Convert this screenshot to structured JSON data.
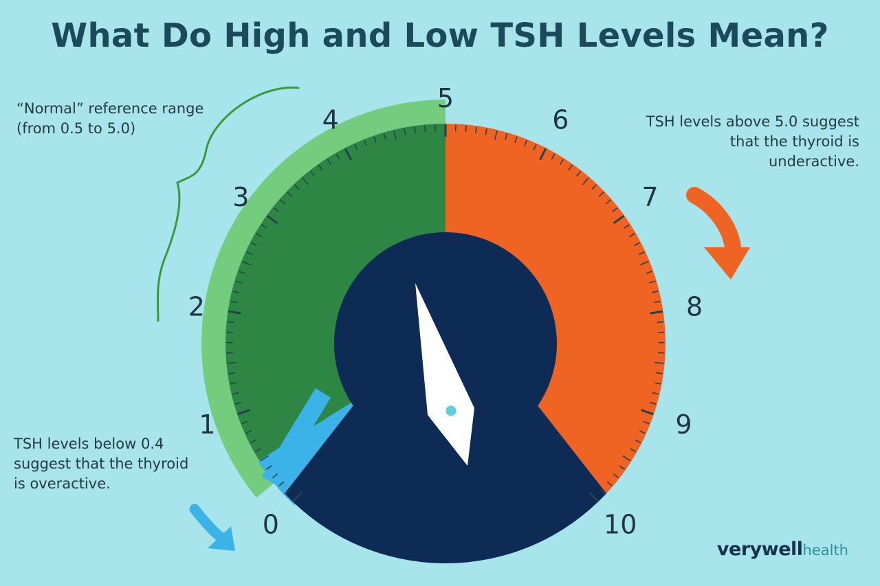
{
  "title": "What Do High and Low TSH Levels Mean?",
  "notes": {
    "normal": [
      "“Normal” reference range",
      "(from 0.5 to 5.0)"
    ],
    "high": [
      "TSH levels above 5.0 suggest",
      "that the thyroid is",
      "underactive."
    ],
    "low": [
      "TSH levels below 0.4",
      "suggest that the thyroid",
      "is overactive."
    ]
  },
  "gauge": {
    "scale_labels": [
      "0",
      "1",
      "2",
      "3",
      "4",
      "5",
      "6",
      "7",
      "8",
      "9",
      "10"
    ],
    "scale_min": 0,
    "scale_max": 10,
    "normal_range": [
      0.5,
      5.0
    ],
    "low_threshold": 0.4,
    "colors": {
      "low": "#3bb2e8",
      "normal": "#2e8644",
      "normal_band": "#74cc7e",
      "high": "#ef6423",
      "center": "#0e2b56",
      "needle": "#ffffff",
      "pivot": "#5ad0e0"
    },
    "icons": [
      "arrow-down-right-icon",
      "arrow-down-icon"
    ]
  },
  "brand": {
    "part1": "verywell",
    "part2": "health"
  }
}
